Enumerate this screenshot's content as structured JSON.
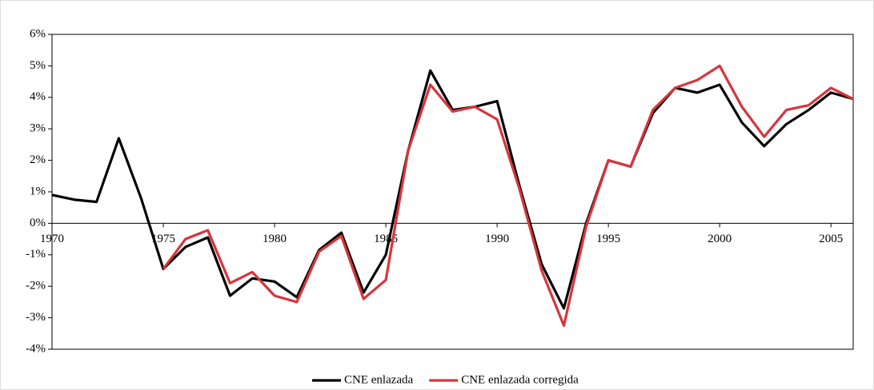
{
  "chart_data": {
    "type": "line",
    "x": [
      1970,
      1971,
      1972,
      1973,
      1974,
      1975,
      1976,
      1977,
      1978,
      1979,
      1980,
      1981,
      1982,
      1983,
      1984,
      1985,
      1986,
      1987,
      1988,
      1989,
      1990,
      1991,
      1992,
      1993,
      1994,
      1995,
      1996,
      1997,
      1998,
      1999,
      2000,
      2001,
      2002,
      2003,
      2004,
      2005,
      2006
    ],
    "series": [
      {
        "name": "CNE enlazada",
        "color": "#000000",
        "values": [
          0.9,
          0.75,
          0.68,
          2.7,
          0.8,
          -1.45,
          -0.75,
          -0.45,
          -2.3,
          -1.75,
          -1.85,
          -2.35,
          -0.85,
          -0.3,
          -2.2,
          -1.0,
          2.3,
          4.85,
          3.6,
          3.7,
          3.88,
          1.2,
          -1.3,
          -2.7,
          0.0,
          2.0,
          1.8,
          3.5,
          4.3,
          4.15,
          4.4,
          3.2,
          2.45,
          3.15,
          3.6,
          4.15,
          3.95
        ]
      },
      {
        "name": "CNE enlazada corregida",
        "color": "#d9343b",
        "values": [
          null,
          null,
          null,
          null,
          null,
          -1.45,
          -0.5,
          -0.22,
          -1.9,
          -1.55,
          -2.3,
          -2.5,
          -0.9,
          -0.4,
          -2.4,
          -1.8,
          2.3,
          4.4,
          3.55,
          3.7,
          3.3,
          1.1,
          -1.5,
          -3.25,
          -0.1,
          2.0,
          1.8,
          3.6,
          4.3,
          4.55,
          5.0,
          3.7,
          2.75,
          3.6,
          3.75,
          4.3,
          3.95
        ]
      }
    ],
    "xlim": [
      1970,
      2006
    ],
    "xticks": [
      1970,
      1975,
      1980,
      1985,
      1990,
      1995,
      2000,
      2005
    ],
    "ylim": [
      -4,
      6
    ],
    "yticks": [
      {
        "value": -4,
        "label": "-4%"
      },
      {
        "value": -3,
        "label": "-3%"
      },
      {
        "value": -2,
        "label": "-2%"
      },
      {
        "value": -1,
        "label": "-1%"
      },
      {
        "value": 0,
        "label": "0%"
      },
      {
        "value": 1,
        "label": "1%"
      },
      {
        "value": 2,
        "label": "2%"
      },
      {
        "value": 3,
        "label": "3%"
      },
      {
        "value": 4,
        "label": "4%"
      },
      {
        "value": 5,
        "label": "5%"
      },
      {
        "value": 6,
        "label": "6%"
      }
    ],
    "legend": "bottom"
  }
}
